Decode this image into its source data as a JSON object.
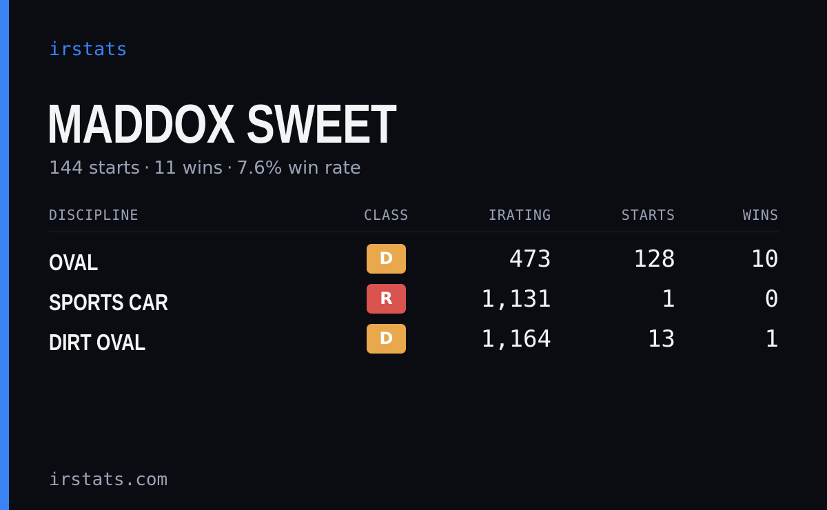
{
  "brand": "irstats",
  "player": {
    "name": "MADDOX SWEET",
    "starts_text": "144 starts",
    "wins_text": "11 wins",
    "win_rate_text": "7.6% win rate",
    "separator": "·"
  },
  "table": {
    "headers": {
      "discipline": "DISCIPLINE",
      "class": "CLASS",
      "irating": "IRATING",
      "starts": "STARTS",
      "wins": "WINS"
    },
    "rows": [
      {
        "discipline": "OVAL",
        "class": "D",
        "class_color": "#e8a84b",
        "irating": "473",
        "starts": "128",
        "wins": "10"
      },
      {
        "discipline": "SPORTS CAR",
        "class": "R",
        "class_color": "#d9534f",
        "irating": "1,131",
        "starts": "1",
        "wins": "0"
      },
      {
        "discipline": "DIRT OVAL",
        "class": "D",
        "class_color": "#e8a84b",
        "irating": "1,164",
        "starts": "13",
        "wins": "1"
      }
    ]
  },
  "footer": "irstats.com",
  "colors": {
    "background": "#0a0c12",
    "accent": "#3b82f6",
    "muted_text": "#9aa3b5",
    "primary_text": "#f3f4f6"
  }
}
